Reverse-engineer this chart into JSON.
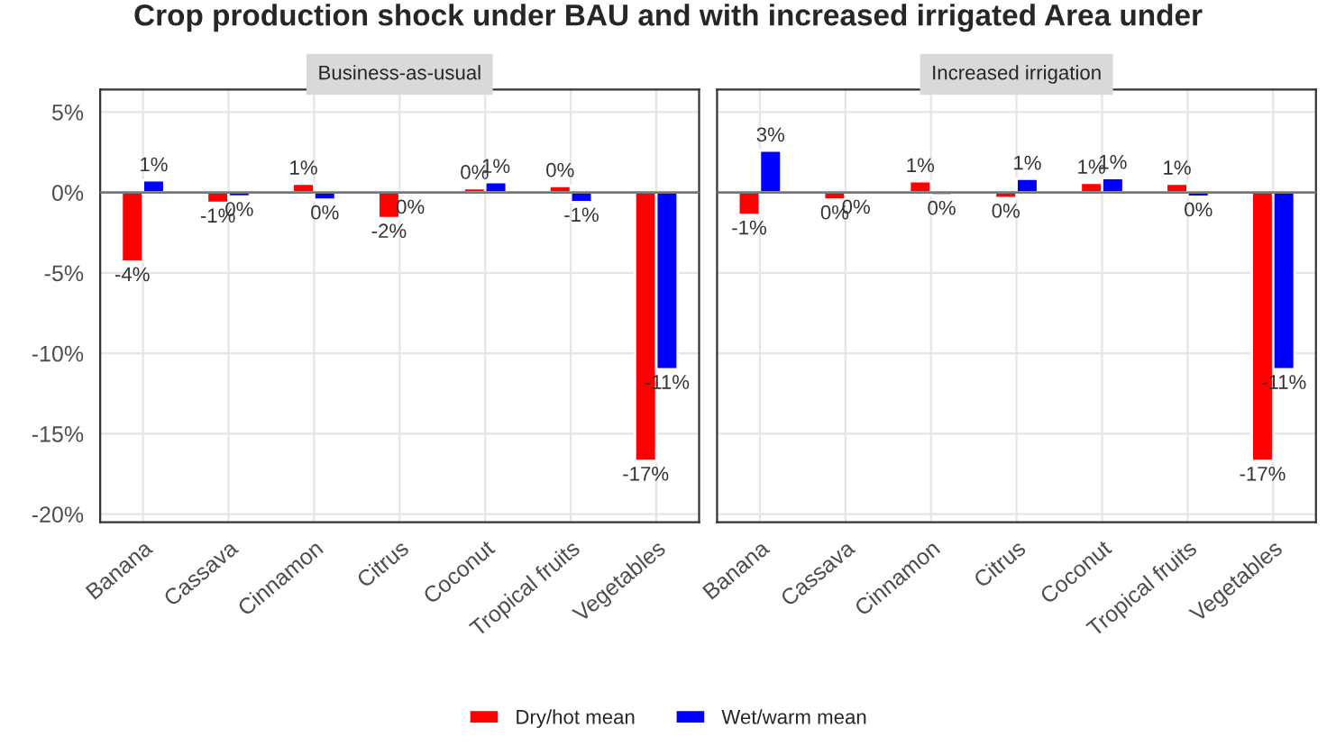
{
  "chart_data": [
    {
      "type": "bar",
      "title": "Crop production shock under BAU and with increased irrigated Area under",
      "subtitle": "Business-as-usual",
      "categories": [
        "Banana",
        "Cassava",
        "Cinnamon",
        "Citrus",
        "Coconut",
        "Tropical fruits",
        "Vegetables"
      ],
      "series": [
        {
          "name": "Dry/hot mean",
          "color": "#ff0000",
          "values": [
            -4.3,
            -0.65,
            0.55,
            -1.6,
            0.27,
            0.4,
            -16.7
          ],
          "value_labels": [
            "-4%",
            "-1%",
            "1%",
            "-2%",
            "0%",
            "0%",
            "-17%"
          ]
        },
        {
          "name": "Wet/warm mean",
          "color": "#0000ff",
          "values": [
            0.75,
            -0.25,
            -0.45,
            -0.1,
            0.65,
            -0.6,
            -11.0
          ],
          "value_labels": [
            "1%",
            "0%",
            "0%",
            "0%",
            "1%",
            "-1%",
            "-11%"
          ]
        }
      ],
      "ylim": [
        -20.5,
        6.4
      ],
      "yticks": [
        {
          "value": -20,
          "label": "-20%"
        },
        {
          "value": -15,
          "label": "-15%"
        },
        {
          "value": -10,
          "label": "-10%"
        },
        {
          "value": -5,
          "label": "-5%"
        },
        {
          "value": 0,
          "label": "0%"
        },
        {
          "value": 5,
          "label": "5%"
        }
      ],
      "grid": true,
      "legend": "bottom"
    },
    {
      "type": "bar",
      "subtitle": "Increased irrigation",
      "categories": [
        "Banana",
        "Cassava",
        "Cinnamon",
        "Citrus",
        "Coconut",
        "Tropical fruits",
        "Vegetables"
      ],
      "series": [
        {
          "color": "#ff0000",
          "values": [
            -1.4,
            -0.45,
            0.7,
            -0.35,
            0.6,
            0.55,
            -16.7
          ],
          "value_labels": [
            "-1%",
            "0%",
            "1%",
            "0%",
            "1%",
            "1%",
            "-17%"
          ]
        },
        {
          "color": "#0000ff",
          "values": [
            2.6,
            -0.1,
            -0.17,
            0.85,
            0.9,
            -0.27,
            -11.0
          ],
          "value_labels": [
            "3%",
            "0%",
            "0%",
            "1%",
            "1%",
            "0%",
            "-11%"
          ]
        }
      ],
      "ylim": [
        -20.5,
        6.4
      ],
      "yticks": [
        -20,
        -15,
        -10,
        -5,
        0,
        5
      ],
      "grid": true,
      "tick_labels": "x"
    }
  ]
}
